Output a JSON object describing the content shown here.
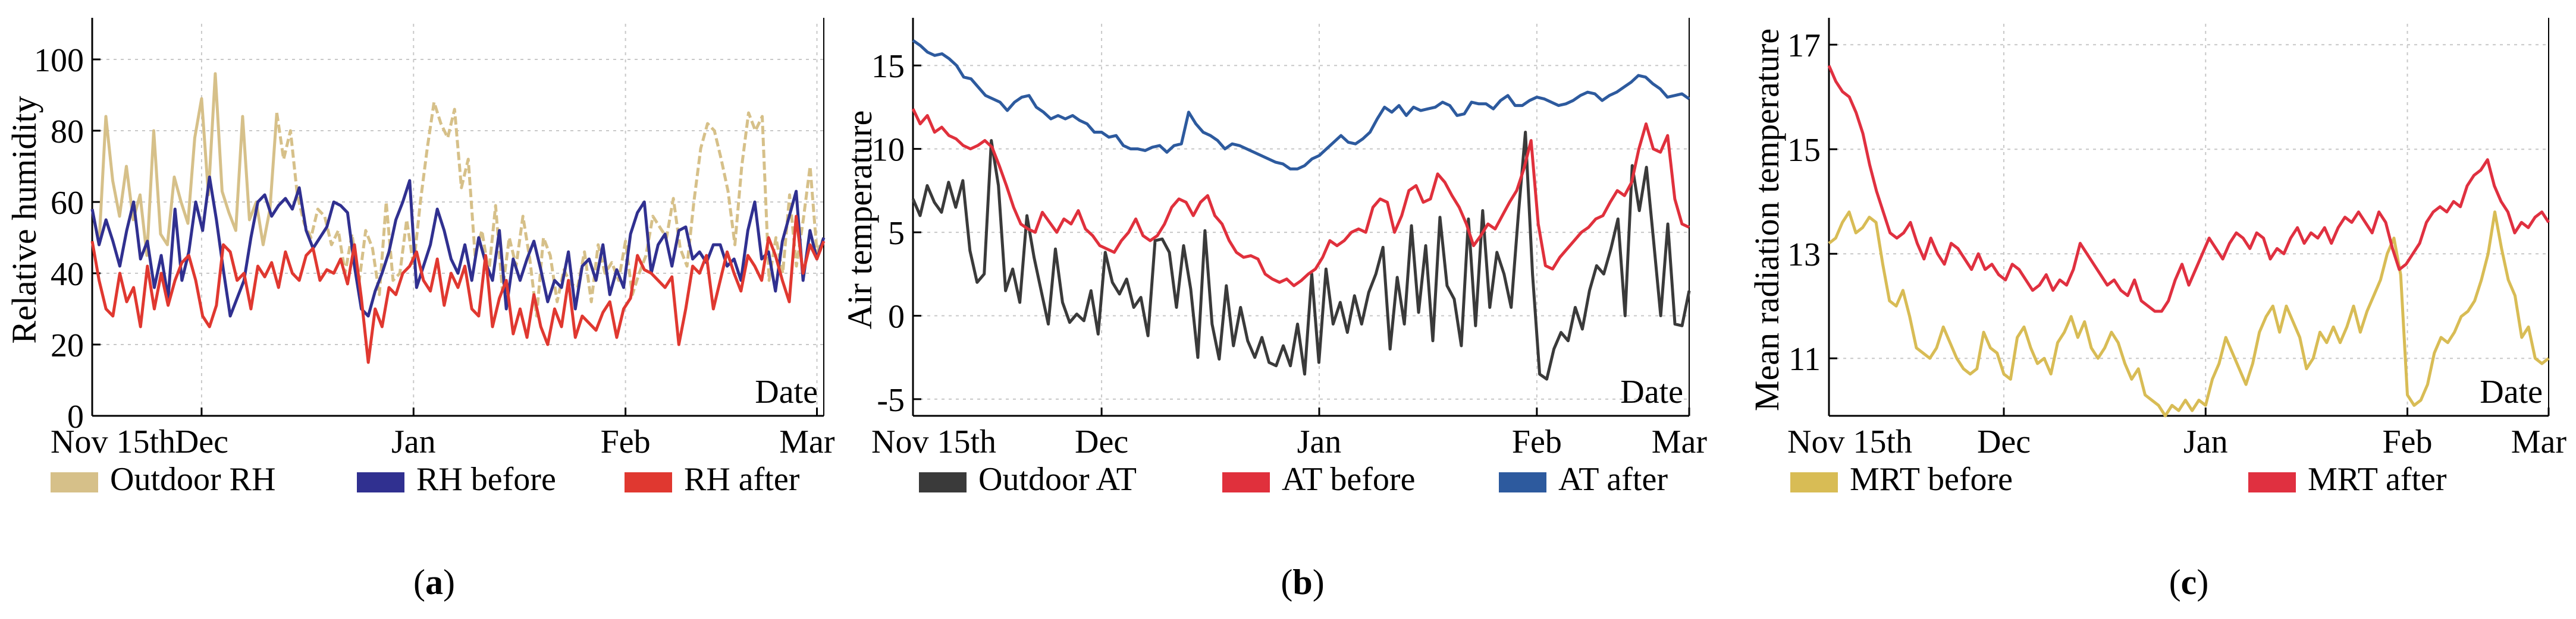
{
  "chart_data": [
    {
      "type": "line",
      "id": "a",
      "caption_letter": "a",
      "ylabel": "Relative humidity",
      "xlabel": "Date",
      "ylim": [
        0,
        110
      ],
      "xlim": [
        0,
        107
      ],
      "yticks": [
        0,
        20,
        40,
        60,
        80,
        100
      ],
      "xticks": [
        {
          "pos": 0,
          "label": "Nov 15th"
        },
        {
          "pos": 16,
          "label": "Dec"
        },
        {
          "pos": 47,
          "label": "Jan"
        },
        {
          "pos": 78,
          "label": "Feb"
        },
        {
          "pos": 106,
          "label": "Mar"
        }
      ],
      "series": [
        {
          "name": "Outdoor RH",
          "color": "#d6c089",
          "values": [
            58,
            48,
            84,
            66,
            56,
            70,
            55,
            62,
            45,
            80,
            51,
            48,
            67,
            60,
            54,
            78,
            89,
            62,
            96,
            63,
            57,
            52,
            84,
            55,
            60,
            48,
            58,
            85,
            72,
            80,
            62,
            54,
            50,
            58,
            56,
            48,
            52,
            40,
            51,
            37,
            52,
            47,
            34,
            60,
            38,
            40,
            55,
            42,
            60,
            75,
            88,
            82,
            78,
            86,
            64,
            72,
            45,
            52,
            40,
            59,
            35,
            50,
            42,
            56,
            44,
            28,
            50,
            45,
            32,
            41,
            37,
            36,
            46,
            32,
            48,
            40,
            43,
            38,
            49,
            34,
            40,
            45,
            56,
            53,
            50,
            61,
            47,
            42,
            60,
            75,
            82,
            80,
            72,
            63,
            48,
            70,
            85,
            80,
            84,
            38,
            50,
            40,
            62,
            42,
            55,
            70,
            46,
            50
          ],
          "dashed_from": 27
        },
        {
          "name": "RH before",
          "color": "#303090",
          "values": [
            58,
            48,
            55,
            49,
            42,
            52,
            60,
            44,
            49,
            36,
            45,
            33,
            58,
            38,
            46,
            60,
            52,
            67,
            55,
            41,
            28,
            33,
            38,
            50,
            60,
            62,
            56,
            59,
            61,
            58,
            64,
            52,
            47,
            50,
            53,
            60,
            59,
            57,
            42,
            30,
            28,
            35,
            40,
            46,
            55,
            60,
            66,
            36,
            42,
            48,
            58,
            52,
            44,
            40,
            48,
            38,
            50,
            43,
            38,
            52,
            30,
            44,
            38,
            44,
            49,
            41,
            32,
            38,
            36,
            46,
            30,
            42,
            44,
            38,
            48,
            34,
            41,
            36,
            51,
            57,
            60,
            40,
            48,
            51,
            42,
            52,
            53,
            44,
            46,
            43,
            48,
            48,
            42,
            44,
            38,
            52,
            60,
            44,
            46,
            35,
            49,
            56,
            63,
            38,
            52,
            44,
            50
          ],
          "dashed_from": 999
        },
        {
          "name": "RH after",
          "color": "#e03830",
          "values": [
            49,
            38,
            30,
            28,
            40,
            32,
            36,
            25,
            42,
            30,
            40,
            31,
            38,
            43,
            45,
            38,
            28,
            25,
            31,
            48,
            46,
            38,
            40,
            30,
            42,
            39,
            43,
            36,
            46,
            40,
            38,
            45,
            47,
            38,
            41,
            40,
            44,
            37,
            48,
            33,
            15,
            30,
            25,
            36,
            34,
            40,
            42,
            46,
            38,
            35,
            44,
            31,
            40,
            36,
            42,
            30,
            28,
            45,
            25,
            33,
            38,
            23,
            30,
            22,
            34,
            25,
            20,
            30,
            25,
            38,
            22,
            28,
            26,
            24,
            29,
            32,
            22,
            30,
            33,
            45,
            41,
            40,
            38,
            36,
            39,
            20,
            30,
            42,
            40,
            45,
            30,
            38,
            46,
            40,
            35,
            45,
            42,
            38,
            50,
            45,
            38,
            32,
            56,
            40,
            48,
            44,
            49
          ],
          "dashed_from": 999
        }
      ]
    },
    {
      "type": "line",
      "id": "b",
      "caption_letter": "b",
      "ylabel": "Air temperature",
      "xlabel": "Date",
      "ylim": [
        -6,
        17.5
      ],
      "xlim": [
        0,
        107
      ],
      "yticks": [
        -5,
        0,
        5,
        10,
        15
      ],
      "xticks": [
        {
          "pos": 0,
          "label": "Nov 15th"
        },
        {
          "pos": 26,
          "label": "Dec"
        },
        {
          "pos": 56,
          "label": "Jan"
        },
        {
          "pos": 86,
          "label": "Feb"
        },
        {
          "pos": 107,
          "label": "Mar"
        }
      ],
      "series": [
        {
          "name": "Outdoor AT",
          "color": "#3a3a3a",
          "values": [
            7,
            6,
            7.8,
            6.8,
            6.2,
            8,
            6.5,
            8.1,
            3.9,
            2,
            2.5,
            10.5,
            7.8,
            1.5,
            2.8,
            0.8,
            6,
            3.5,
            1.5,
            -0.5,
            4,
            0.8,
            -0.4,
            0.1,
            -0.3,
            1.5,
            -1.1,
            3.8,
            2,
            1.3,
            2.2,
            0.5,
            1.1,
            -1.2,
            4.5,
            4.6,
            3.8,
            0.5,
            4.2,
            1.6,
            -2.5,
            5.1,
            -0.5,
            -2.6,
            1.8,
            -1.8,
            0.5,
            -1.5,
            -2.5,
            -1.3,
            -2.8,
            -3,
            -1.8,
            -3,
            -0.5,
            -3.5,
            2.5,
            -2.8,
            2.8,
            -0.5,
            0.8,
            -1,
            1.2,
            -0.5,
            1.4,
            2.5,
            4.1,
            -2,
            2.3,
            -0.5,
            5.4,
            0.2,
            4.2,
            -1.5,
            5.9,
            1.8,
            1,
            -1.8,
            5.8,
            -0.6,
            6.3,
            0.5,
            3.8,
            2.5,
            0.5,
            6,
            11,
            2.5,
            -3.5,
            -3.8,
            -2,
            -1,
            -1.5,
            0.5,
            -0.8,
            1.5,
            3,
            2.5,
            4,
            5.8,
            0,
            9,
            6.3,
            8.9,
            4.5,
            0,
            5.5,
            -0.5,
            -0.6,
            1.5
          ],
          "dashed_from": 999
        },
        {
          "name": "AT before",
          "color": "#e0303c",
          "values": [
            12.4,
            11.5,
            12,
            11,
            11.3,
            10.8,
            10.6,
            10.2,
            10,
            10.2,
            10.5,
            10.1,
            9,
            7.8,
            6.5,
            5.5,
            5.2,
            5,
            6.2,
            5.6,
            5,
            5.8,
            5.5,
            6.3,
            5.2,
            4.8,
            4.2,
            4,
            3.8,
            4.5,
            5,
            5.8,
            4.8,
            4.5,
            4.8,
            5.5,
            6.5,
            7,
            6.8,
            6,
            6.8,
            7.2,
            6,
            5.5,
            4.5,
            3.8,
            3.5,
            3.6,
            3.4,
            2.5,
            2.2,
            2,
            2.2,
            1.8,
            2.1,
            2.5,
            2.8,
            3.5,
            4.5,
            4.2,
            4.5,
            5,
            5.2,
            5,
            6.5,
            7,
            6.8,
            5,
            6,
            7.5,
            7.8,
            6.8,
            7,
            8.5,
            8,
            7.2,
            6.5,
            5.5,
            4.2,
            4.8,
            5.5,
            5.2,
            6,
            6.8,
            7.5,
            8.8,
            10.5,
            5.5,
            3,
            2.8,
            3.5,
            4,
            4.5,
            5,
            5.3,
            5.8,
            6,
            6.8,
            7.5,
            7.2,
            8,
            10,
            11.5,
            10,
            9.8,
            10.8,
            7,
            5.5,
            5.3
          ],
          "dashed_from": 999
        },
        {
          "name": "AT after",
          "color": "#2d5a9e",
          "values": [
            16.5,
            16.2,
            15.8,
            15.6,
            15.7,
            15.4,
            15,
            14.3,
            14.2,
            13.7,
            13.2,
            13,
            12.8,
            12.3,
            12.8,
            13.1,
            13.2,
            12.5,
            12.2,
            11.8,
            12,
            11.8,
            12,
            11.7,
            11.5,
            11,
            11,
            10.7,
            10.8,
            10.2,
            10,
            10,
            9.9,
            10.1,
            10.2,
            9.8,
            10.2,
            10.3,
            12.2,
            11.5,
            11,
            10.8,
            10.5,
            10,
            10.3,
            10.2,
            10,
            9.8,
            9.6,
            9.4,
            9.2,
            9.1,
            8.8,
            8.8,
            9,
            9.4,
            9.6,
            10,
            10.4,
            10.8,
            10.4,
            10.3,
            10.6,
            11,
            11.8,
            12.5,
            12.2,
            12.6,
            12,
            12.5,
            12.3,
            12.4,
            12.5,
            12.8,
            12.6,
            12,
            12.1,
            12.8,
            12.7,
            12.7,
            12.4,
            12.9,
            13.2,
            12.6,
            12.6,
            12.9,
            13.1,
            13,
            12.8,
            12.6,
            12.7,
            12.9,
            13.2,
            13.4,
            13.3,
            12.9,
            13.2,
            13.4,
            13.7,
            14,
            14.4,
            14.3,
            13.9,
            13.6,
            13.1,
            13.2,
            13.3,
            13
          ],
          "dashed_from": 999
        }
      ]
    },
    {
      "type": "line",
      "id": "c",
      "caption_letter": "c",
      "ylabel": "Mean radiation temperature",
      "xlabel": "Date",
      "ylim": [
        9.9,
        17.4
      ],
      "xlim": [
        0,
        107
      ],
      "yticks": [
        11,
        13,
        15,
        17
      ],
      "xticks": [
        {
          "pos": 0,
          "label": "Nov 15th"
        },
        {
          "pos": 26,
          "label": "Dec"
        },
        {
          "pos": 56,
          "label": "Jan"
        },
        {
          "pos": 86,
          "label": "Feb"
        },
        {
          "pos": 107,
          "label": "Mar"
        }
      ],
      "series": [
        {
          "name": "MRT before",
          "color": "#d8bc55",
          "values": [
            13.2,
            13.3,
            13.6,
            13.8,
            13.4,
            13.5,
            13.7,
            13.6,
            12.8,
            12.1,
            12,
            12.3,
            11.8,
            11.2,
            11.1,
            11,
            11.2,
            11.6,
            11.3,
            11,
            10.8,
            10.7,
            10.8,
            11.5,
            11.2,
            11.1,
            10.7,
            10.6,
            11.4,
            11.6,
            11.2,
            10.9,
            11,
            10.7,
            11.3,
            11.5,
            11.8,
            11.4,
            11.7,
            11.2,
            11,
            11.2,
            11.5,
            11.3,
            10.9,
            10.6,
            10.8,
            10.3,
            10.2,
            10.1,
            9.9,
            10.1,
            10,
            10.2,
            10,
            10.2,
            10.1,
            10.6,
            10.9,
            11.4,
            11.1,
            10.8,
            10.5,
            10.9,
            11.5,
            11.8,
            12,
            11.5,
            12,
            11.7,
            11.4,
            10.8,
            11,
            11.5,
            11.3,
            11.6,
            11.3,
            11.6,
            12,
            11.5,
            11.9,
            12.2,
            12.5,
            13,
            13.3,
            12.6,
            10.3,
            10.1,
            10.2,
            10.5,
            11.1,
            11.4,
            11.3,
            11.5,
            11.8,
            11.9,
            12.1,
            12.5,
            13,
            13.8,
            13.1,
            12.5,
            12.2,
            11.4,
            11.6,
            11,
            10.9,
            11
          ],
          "dashed_from": 999
        },
        {
          "name": "MRT after",
          "color": "#e03040",
          "values": [
            16.6,
            16.3,
            16.1,
            16,
            15.7,
            15.3,
            14.7,
            14.2,
            13.8,
            13.4,
            13.3,
            13.4,
            13.6,
            13.2,
            12.9,
            13.3,
            13,
            12.8,
            13.2,
            13.1,
            12.9,
            12.7,
            13,
            12.7,
            12.8,
            12.6,
            12.5,
            12.8,
            12.7,
            12.5,
            12.3,
            12.4,
            12.6,
            12.3,
            12.5,
            12.4,
            12.7,
            13.2,
            13,
            12.8,
            12.6,
            12.4,
            12.5,
            12.3,
            12.2,
            12.5,
            12.1,
            12,
            11.9,
            11.9,
            12.1,
            12.5,
            12.8,
            12.4,
            12.7,
            13,
            13.3,
            13.1,
            12.9,
            13.2,
            13.4,
            13.3,
            13.1,
            13.4,
            13.3,
            12.9,
            13.1,
            13,
            13.3,
            13.5,
            13.2,
            13.4,
            13.3,
            13.5,
            13.2,
            13.5,
            13.7,
            13.6,
            13.8,
            13.6,
            13.4,
            13.8,
            13.6,
            13.1,
            12.7,
            12.8,
            13,
            13.2,
            13.6,
            13.8,
            13.9,
            13.8,
            14,
            13.9,
            14.3,
            14.5,
            14.6,
            14.8,
            14.3,
            14,
            13.8,
            13.4,
            13.6,
            13.5,
            13.7,
            13.8,
            13.6
          ],
          "dashed_from": 999
        }
      ]
    }
  ]
}
